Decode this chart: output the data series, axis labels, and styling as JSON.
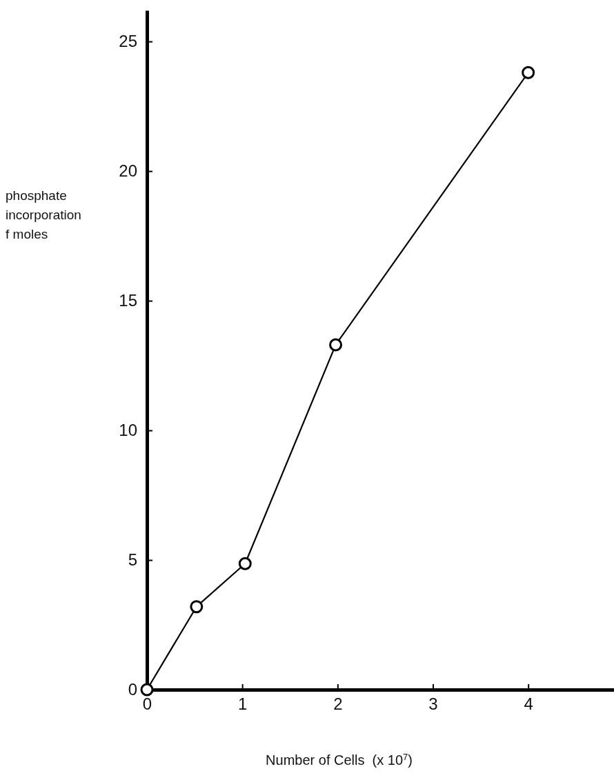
{
  "chart_data": {
    "type": "line",
    "xlabel": "Number of Cells  (x 10$^{7}$)",
    "ylabel": "phosphate\nincorporation\nf moles",
    "x": [
      0,
      0.52,
      1.03,
      1.98,
      4
    ],
    "values": [
      0,
      3.2,
      4.86,
      13.3,
      23.8
    ],
    "color": "#000000",
    "marker": "circle",
    "line_style": "solid",
    "xlim": [
      0,
      4.9
    ],
    "xticks": [
      0,
      1,
      2,
      3,
      4
    ],
    "ylim": [
      0,
      26.2
    ],
    "yticks": [
      0,
      5,
      10,
      15,
      20,
      25
    ]
  }
}
